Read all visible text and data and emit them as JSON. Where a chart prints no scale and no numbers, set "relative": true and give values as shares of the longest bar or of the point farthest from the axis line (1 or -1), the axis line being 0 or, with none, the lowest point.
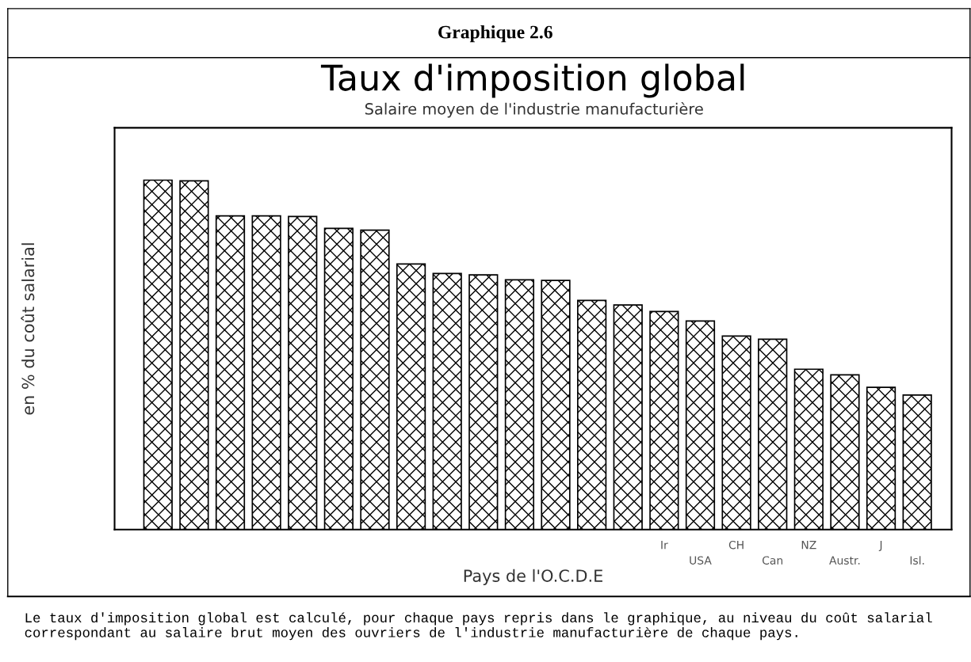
{
  "chart_data": {
    "type": "bar",
    "title": "Taux d'imposition global",
    "subtitle": "Salaire moyen de l'industrie manufacturière",
    "xlabel": "Pays de l'O.C.D.E",
    "ylabel": "en % du coût salarial",
    "annotations": [
      "Graphique 2.6",
      "Le taux d'imposition global est calculé, pour chaque pays repris dans le graphique, au niveau du coût salarial correspondant au salaire brut moyen des ouvriers de l'industrie manufacturière de chaque pays."
    ],
    "categories": [
      null,
      null,
      null,
      null,
      null,
      null,
      null,
      null,
      null,
      null,
      null,
      null,
      null,
      null,
      "Ir",
      "USA",
      "CH",
      "Can",
      "NZ",
      "Austr.",
      "J",
      "Isl."
    ],
    "values": [
      1,
      0.998,
      0.898,
      0.898,
      0.896,
      0.862,
      0.857,
      0.76,
      0.733,
      0.729,
      0.715,
      0.713,
      0.656,
      0.643,
      0.624,
      0.597,
      0.554,
      0.545,
      0.459,
      0.443,
      0.407,
      0.385
    ],
    "color": "#000000",
    "relative": true
  }
}
